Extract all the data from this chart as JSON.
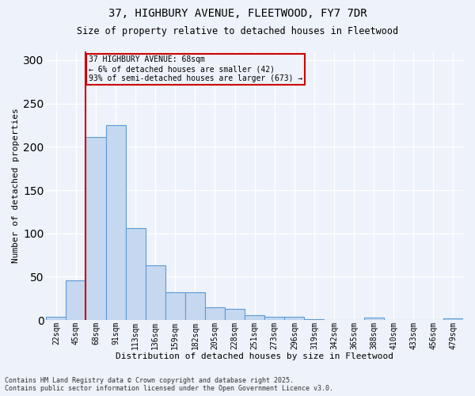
{
  "title_line1": "37, HIGHBURY AVENUE, FLEETWOOD, FY7 7DR",
  "title_line2": "Size of property relative to detached houses in Fleetwood",
  "xlabel": "Distribution of detached houses by size in Fleetwood",
  "ylabel": "Number of detached properties",
  "annotation_line1": "37 HIGHBURY AVENUE: 68sqm",
  "annotation_line2": "← 6% of detached houses are smaller (42)",
  "annotation_line3": "93% of semi-detached houses are larger (673) →",
  "footer_line1": "Contains HM Land Registry data © Crown copyright and database right 2025.",
  "footer_line2": "Contains public sector information licensed under the Open Government Licence v3.0.",
  "bar_color": "#c5d8f0",
  "bar_edge_color": "#5b9bd5",
  "background_color": "#eef2fa",
  "grid_color": "#ffffff",
  "vline_color": "#cc0000",
  "vline_x": 1.5,
  "annotation_box_color": "#cc0000",
  "categories": [
    "22sqm",
    "45sqm",
    "68sqm",
    "91sqm",
    "113sqm",
    "136sqm",
    "159sqm",
    "182sqm",
    "205sqm",
    "228sqm",
    "251sqm",
    "273sqm",
    "296sqm",
    "319sqm",
    "342sqm",
    "365sqm",
    "388sqm",
    "410sqm",
    "433sqm",
    "456sqm",
    "479sqm"
  ],
  "values": [
    4,
    46,
    211,
    225,
    106,
    63,
    32,
    32,
    15,
    13,
    6,
    4,
    4,
    1,
    0,
    0,
    3,
    0,
    0,
    0,
    2
  ],
  "ylim": [
    0,
    310
  ],
  "yticks": [
    0,
    50,
    100,
    150,
    200,
    250,
    300
  ]
}
